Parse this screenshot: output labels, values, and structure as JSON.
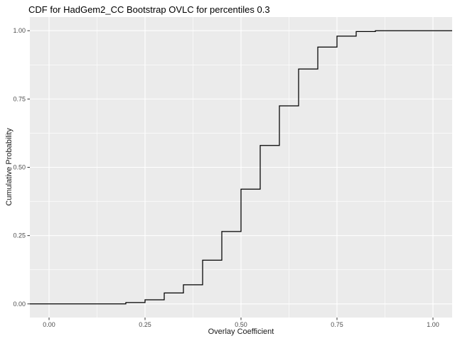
{
  "title": "CDF for HadGem2_CC Bootstrap OVLC for percentiles 0.3",
  "chart_data": {
    "type": "line",
    "subtype": "step-ecdf",
    "title": "CDF for HadGem2_CC Bootstrap OVLC for percentiles 0.3",
    "xlabel": "Overlay Coefficient",
    "ylabel": "Cumulative Probability",
    "xlim": [
      -0.05,
      1.05
    ],
    "ylim": [
      -0.05,
      1.05
    ],
    "x_ticks": [
      0.0,
      0.25,
      0.5,
      0.75,
      1.0
    ],
    "x_tick_labels": [
      "0.00",
      "0.25",
      "0.50",
      "0.75",
      "1.00"
    ],
    "y_ticks": [
      0.0,
      0.25,
      0.5,
      0.75,
      1.0
    ],
    "y_tick_labels": [
      "0.00",
      "0.25",
      "0.50",
      "0.75",
      "1.00"
    ],
    "x_minor_ticks": [
      0.125,
      0.375,
      0.625,
      0.875
    ],
    "y_minor_ticks": [
      0.125,
      0.375,
      0.625,
      0.875
    ],
    "grid": "major+minor",
    "legend": "none",
    "series": [
      {
        "name": "ecdf",
        "start_value": 0.0,
        "step_x": [
          0.2,
          0.25,
          0.3,
          0.35,
          0.4,
          0.45,
          0.5,
          0.55,
          0.6,
          0.65,
          0.7,
          0.75,
          0.8,
          0.85
        ],
        "cdf": [
          0.005,
          0.015,
          0.04,
          0.07,
          0.16,
          0.265,
          0.42,
          0.58,
          0.725,
          0.86,
          0.94,
          0.98,
          0.997,
          1.0
        ]
      }
    ],
    "colors": {
      "line": "#000000",
      "panel_background": "#EBEBEB",
      "gridline": "#FFFFFF",
      "tick_label": "#4D4D4D",
      "tick_mark": "#333333",
      "title_text": "#000000"
    }
  }
}
